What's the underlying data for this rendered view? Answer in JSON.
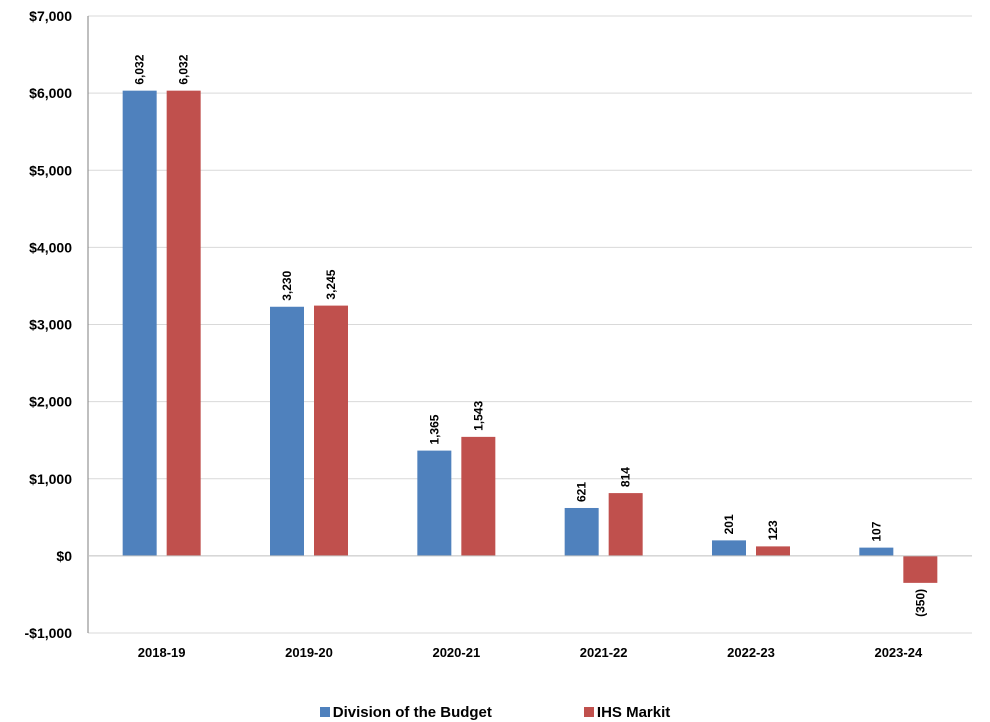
{
  "chart_data": {
    "type": "bar",
    "categories": [
      "2018-19",
      "2019-20",
      "2020-21",
      "2021-22",
      "2022-23",
      "2023-24"
    ],
    "series": [
      {
        "name": "Division of the Budget",
        "color": "#4F81BD",
        "values": [
          6032,
          3230,
          1365,
          621,
          201,
          107
        ],
        "labels": [
          "6,032",
          "3,230",
          "1,365",
          "621",
          "201",
          "107"
        ]
      },
      {
        "name": "IHS Markit",
        "color": "#C0504D",
        "values": [
          6032,
          3245,
          1543,
          814,
          123,
          -350
        ],
        "labels": [
          "6,032",
          "3,245",
          "1,543",
          "814",
          "123",
          "(350)"
        ]
      }
    ],
    "yticks": [
      7000,
      6000,
      5000,
      4000,
      3000,
      2000,
      1000,
      0,
      -1000
    ],
    "ytick_labels": [
      "$7,000",
      "$6,000",
      "$5,000",
      "$4,000",
      "$3,000",
      "$2,000",
      "$1,000",
      "$0",
      "-$1,000"
    ],
    "ylim": [
      -1000,
      7000
    ],
    "grid": true,
    "legend_position": "bottom",
    "title": "",
    "xlabel": "",
    "ylabel": ""
  }
}
